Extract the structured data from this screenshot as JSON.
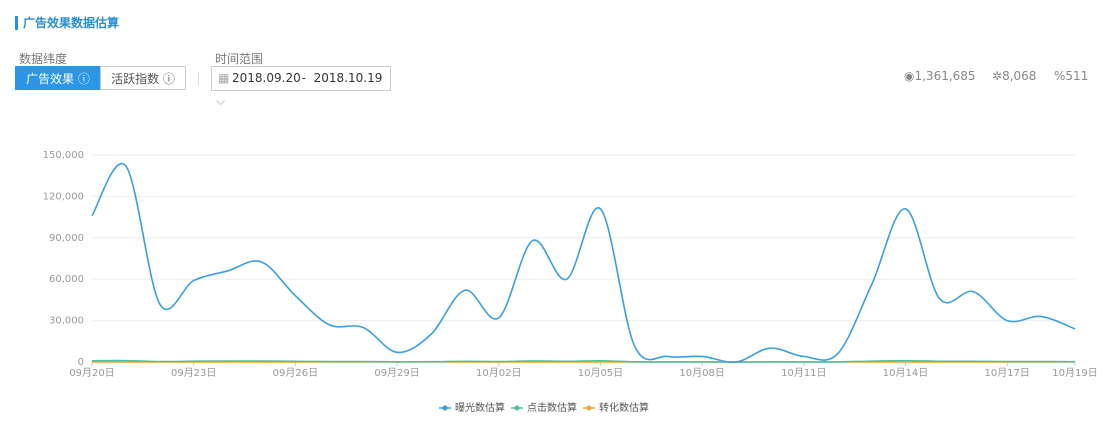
{
  "header": {
    "title": "广告效果数据估算"
  },
  "filters": {
    "dimension_label": "数据纬度",
    "tabs": [
      "广告效果",
      "活跃指数"
    ],
    "time_label": "时间范围",
    "date_start": "2018.09.20",
    "date_separator": "-",
    "date_end": "2018.10.19"
  },
  "stats": [
    "1,361,685",
    "8,068",
    "511"
  ],
  "chart_data": {
    "type": "line",
    "categories": [
      "09月20日",
      null,
      null,
      "09月23日",
      null,
      null,
      "09月26日",
      null,
      null,
      "09月29日",
      null,
      null,
      "10月02日",
      null,
      null,
      "10月05日",
      null,
      null,
      "10月08日",
      null,
      null,
      "10月11日",
      null,
      null,
      "10月14日",
      null,
      null,
      "10月17日",
      null,
      "10月19日"
    ],
    "series": [
      {
        "name": "曝光数估算",
        "color": "#3a9fe0",
        "values": [
          106000,
          142000,
          42000,
          59000,
          66000,
          72500,
          48000,
          27000,
          25000,
          7000,
          20000,
          52000,
          32000,
          88000,
          60000,
          111000,
          12000,
          4000,
          4000,
          0,
          10000,
          4000,
          6000,
          56000,
          111000,
          46000,
          51000,
          30000,
          33000,
          24000
        ]
      },
      {
        "name": "点击数估算",
        "color": "#4cc3a0",
        "values": [
          900,
          1000,
          300,
          600,
          700,
          700,
          500,
          300,
          300,
          100,
          200,
          500,
          300,
          800,
          500,
          900,
          150,
          50,
          50,
          0,
          100,
          50,
          80,
          600,
          1000,
          500,
          500,
          300,
          300,
          250
        ]
      },
      {
        "name": "转化数估算",
        "color": "#f5a623",
        "values": [
          60,
          80,
          30,
          40,
          40,
          50,
          30,
          20,
          20,
          5,
          15,
          30,
          20,
          50,
          40,
          60,
          10,
          5,
          5,
          0,
          5,
          5,
          5,
          40,
          70,
          30,
          30,
          20,
          20,
          15
        ]
      }
    ],
    "ylim": [
      0,
      150000
    ],
    "yticks": [
      0,
      {
        "value": 30000,
        "label": "30,000"
      },
      {
        "value": 60000,
        "label": "60,000"
      },
      {
        "value": 90000,
        "label": "90,000"
      },
      {
        "value": 120000,
        "label": "120,000"
      },
      {
        "value": 150000,
        "label": "150,000"
      }
    ],
    "grid": true,
    "smooth": true,
    "legend": "bottom"
  }
}
